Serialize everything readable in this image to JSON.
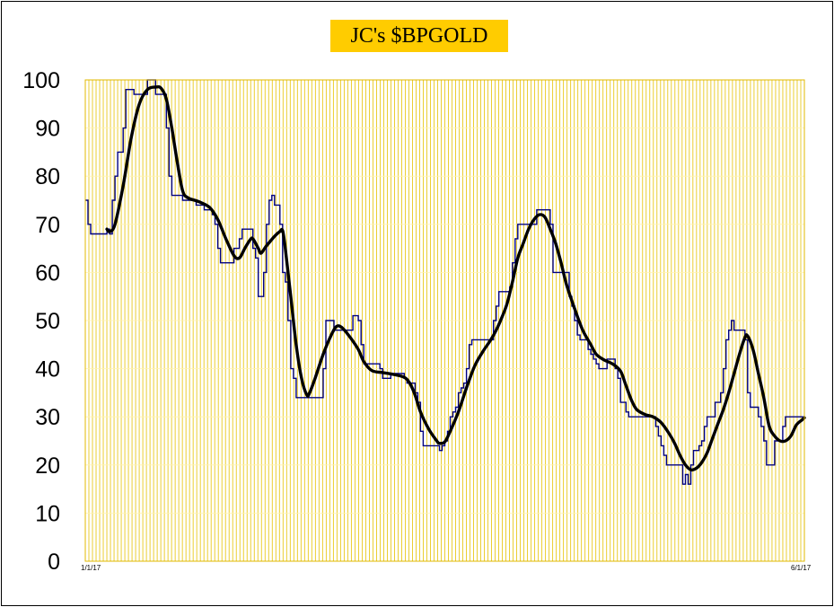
{
  "chart_data": {
    "type": "line",
    "title": "JC's $BPGOLD",
    "ylim": [
      0,
      100
    ],
    "yticks": [
      0,
      10,
      20,
      30,
      40,
      50,
      60,
      70,
      80,
      90,
      100
    ],
    "grid": "vertical-and-horizontal",
    "x_first_label": "1/1/17",
    "x_last_label": "6/1/17",
    "x_count": 200,
    "series": [
      {
        "role": "index",
        "color": "#000080",
        "line_style": "step",
        "points": [
          [
            0,
            75
          ],
          [
            1,
            70
          ],
          [
            2,
            68
          ],
          [
            7,
            68
          ],
          [
            8,
            69
          ],
          [
            9,
            68
          ],
          [
            10,
            75
          ],
          [
            11,
            80
          ],
          [
            12,
            85
          ],
          [
            13,
            85
          ],
          [
            14,
            90
          ],
          [
            15,
            98
          ],
          [
            18,
            97
          ],
          [
            22,
            97
          ],
          [
            23,
            100
          ],
          [
            26,
            97
          ],
          [
            29,
            97
          ],
          [
            30,
            90
          ],
          [
            31,
            80
          ],
          [
            32,
            76
          ],
          [
            35,
            76
          ],
          [
            36,
            75
          ],
          [
            40,
            75
          ],
          [
            41,
            74
          ],
          [
            43,
            74
          ],
          [
            44,
            73
          ],
          [
            46,
            73
          ],
          [
            47,
            72
          ],
          [
            48,
            70
          ],
          [
            49,
            65
          ],
          [
            50,
            62
          ],
          [
            54,
            62
          ],
          [
            55,
            65
          ],
          [
            56,
            65
          ],
          [
            57,
            67
          ],
          [
            58,
            69
          ],
          [
            61,
            69
          ],
          [
            62,
            65
          ],
          [
            63,
            63
          ],
          [
            64,
            55
          ],
          [
            65,
            55
          ],
          [
            66,
            60
          ],
          [
            67,
            70
          ],
          [
            68,
            75
          ],
          [
            69,
            76
          ],
          [
            70,
            74
          ],
          [
            71,
            74
          ],
          [
            72,
            70
          ],
          [
            73,
            60
          ],
          [
            74,
            58
          ],
          [
            75,
            50
          ],
          [
            76,
            40
          ],
          [
            77,
            38
          ],
          [
            78,
            34
          ],
          [
            87,
            34
          ],
          [
            88,
            40
          ],
          [
            89,
            50
          ],
          [
            91,
            50
          ],
          [
            92,
            48
          ],
          [
            98,
            48
          ],
          [
            99,
            51
          ],
          [
            100,
            51
          ],
          [
            101,
            50
          ],
          [
            102,
            45
          ],
          [
            103,
            41
          ],
          [
            108,
            41
          ],
          [
            109,
            40
          ],
          [
            110,
            38
          ],
          [
            112,
            38
          ],
          [
            113,
            39
          ],
          [
            117,
            39
          ],
          [
            118,
            38
          ],
          [
            119,
            37
          ],
          [
            121,
            37
          ],
          [
            122,
            35
          ],
          [
            123,
            33
          ],
          [
            124,
            27
          ],
          [
            125,
            24
          ],
          [
            130,
            24
          ],
          [
            131,
            23
          ],
          [
            132,
            24
          ],
          [
            133,
            25
          ],
          [
            134,
            27
          ],
          [
            135,
            30
          ],
          [
            136,
            31
          ],
          [
            137,
            32
          ],
          [
            138,
            35
          ],
          [
            139,
            36
          ],
          [
            140,
            37
          ],
          [
            141,
            40
          ],
          [
            142,
            45
          ],
          [
            143,
            46
          ],
          [
            150,
            46
          ],
          [
            151,
            50
          ],
          [
            152,
            53
          ],
          [
            153,
            56
          ],
          [
            157,
            57
          ],
          [
            158,
            62
          ],
          [
            159,
            67
          ],
          [
            160,
            70
          ],
          [
            166,
            70
          ],
          [
            167,
            73
          ],
          [
            171,
            73
          ],
          [
            172,
            70
          ],
          [
            173,
            60
          ],
          [
            178,
            60
          ],
          [
            179,
            55
          ],
          [
            180,
            53
          ],
          [
            181,
            50
          ],
          [
            182,
            47
          ],
          [
            183,
            46
          ],
          [
            185,
            46
          ],
          [
            186,
            44
          ],
          [
            187,
            43
          ],
          [
            188,
            42
          ],
          [
            189,
            41
          ],
          [
            190,
            40
          ],
          [
            192,
            40
          ],
          [
            193,
            42
          ],
          [
            195,
            42
          ],
          [
            196,
            40
          ],
          [
            197,
            38
          ],
          [
            198,
            33
          ],
          [
            200,
            31
          ],
          [
            201,
            30
          ],
          [
            210,
            30
          ],
          [
            211,
            28
          ],
          [
            212,
            26
          ],
          [
            213,
            24
          ],
          [
            214,
            22
          ],
          [
            215,
            20
          ],
          [
            220,
            20
          ],
          [
            221,
            16
          ],
          [
            222,
            18
          ],
          [
            223,
            16
          ],
          [
            224,
            20
          ],
          [
            225,
            23
          ],
          [
            227,
            24
          ],
          [
            228,
            25
          ],
          [
            229,
            28
          ],
          [
            230,
            30
          ],
          [
            232,
            30
          ],
          [
            233,
            33
          ],
          [
            235,
            35
          ],
          [
            236,
            40
          ],
          [
            237,
            46
          ],
          [
            238,
            48
          ],
          [
            239,
            50
          ],
          [
            240,
            48
          ],
          [
            243,
            48
          ],
          [
            244,
            46
          ],
          [
            245,
            35
          ],
          [
            246,
            32
          ],
          [
            249,
            30
          ],
          [
            250,
            28
          ],
          [
            251,
            25
          ],
          [
            252,
            20
          ],
          [
            254,
            20
          ],
          [
            255,
            25
          ],
          [
            257,
            25
          ],
          [
            258,
            28
          ],
          [
            259,
            30
          ],
          [
            266,
            30
          ]
        ]
      },
      {
        "role": "smoothed",
        "color": "#000000",
        "line_style": "smooth",
        "points": [
          [
            8,
            69
          ],
          [
            9,
            68.5
          ],
          [
            11,
            70
          ],
          [
            14,
            78
          ],
          [
            17,
            88
          ],
          [
            20,
            95
          ],
          [
            23,
            98
          ],
          [
            26,
            98.5
          ],
          [
            28,
            98.3
          ],
          [
            30,
            96
          ],
          [
            32,
            90
          ],
          [
            34,
            83
          ],
          [
            36,
            77
          ],
          [
            38,
            75.5
          ],
          [
            42,
            74.7
          ],
          [
            46,
            73.5
          ],
          [
            49,
            71
          ],
          [
            52,
            67
          ],
          [
            55,
            63.5
          ],
          [
            57,
            63
          ],
          [
            59,
            65
          ],
          [
            61,
            66.8
          ],
          [
            62,
            67
          ],
          [
            64,
            65
          ],
          [
            65,
            64
          ],
          [
            67,
            65.5
          ],
          [
            70,
            67.5
          ],
          [
            72,
            68.5
          ],
          [
            73,
            68.7
          ],
          [
            74,
            65
          ],
          [
            76,
            55
          ],
          [
            78,
            45
          ],
          [
            80,
            38
          ],
          [
            82,
            34.5
          ],
          [
            83,
            35
          ],
          [
            85,
            38
          ],
          [
            88,
            43
          ],
          [
            91,
            47
          ],
          [
            93,
            48.8
          ],
          [
            95,
            48.5
          ],
          [
            98,
            46.5
          ],
          [
            101,
            44
          ],
          [
            103,
            41.5
          ],
          [
            106,
            39.6
          ],
          [
            110,
            39.2
          ],
          [
            114,
            38.8
          ],
          [
            118,
            38.2
          ],
          [
            120,
            37
          ],
          [
            122,
            34.5
          ],
          [
            124,
            31
          ],
          [
            127,
            27.5
          ],
          [
            130,
            25
          ],
          [
            131,
            24.5
          ],
          [
            133,
            24.8
          ],
          [
            135,
            27
          ],
          [
            138,
            31
          ],
          [
            141,
            36
          ],
          [
            144,
            40.5
          ],
          [
            147,
            43.5
          ],
          [
            150,
            46
          ],
          [
            152,
            48
          ],
          [
            154,
            50.5
          ],
          [
            156,
            53.5
          ],
          [
            158,
            58
          ],
          [
            160,
            63
          ],
          [
            162,
            66
          ],
          [
            164,
            69
          ],
          [
            166,
            71
          ],
          [
            168,
            72
          ],
          [
            170,
            71.5
          ],
          [
            172,
            69
          ],
          [
            174,
            66
          ],
          [
            176,
            62
          ],
          [
            178,
            57.5
          ],
          [
            181,
            52.5
          ],
          [
            184,
            48
          ],
          [
            187,
            45
          ],
          [
            189,
            43
          ],
          [
            192,
            41.8
          ],
          [
            195,
            41
          ],
          [
            198,
            39.5
          ],
          [
            200,
            36.5
          ],
          [
            202,
            33.5
          ],
          [
            204,
            31.5
          ],
          [
            207,
            30.5
          ],
          [
            210,
            30
          ],
          [
            213,
            28.8
          ],
          [
            216,
            26.5
          ],
          [
            218,
            24.5
          ],
          [
            220,
            22
          ],
          [
            222,
            20
          ],
          [
            224,
            19
          ],
          [
            226,
            19.3
          ],
          [
            228,
            20.5
          ],
          [
            230,
            22.5
          ],
          [
            232,
            25.5
          ],
          [
            234,
            28.5
          ],
          [
            236,
            31.5
          ],
          [
            238,
            35
          ],
          [
            240,
            39
          ],
          [
            242,
            43
          ],
          [
            244,
            46.5
          ],
          [
            245,
            46.8
          ],
          [
            247,
            44
          ],
          [
            249,
            39
          ],
          [
            251,
            34
          ],
          [
            253,
            28
          ],
          [
            255,
            26
          ],
          [
            257,
            25
          ],
          [
            259,
            25
          ],
          [
            261,
            26
          ],
          [
            263,
            28.3
          ],
          [
            265,
            29.3
          ],
          [
            266,
            29.8
          ]
        ]
      }
    ]
  }
}
